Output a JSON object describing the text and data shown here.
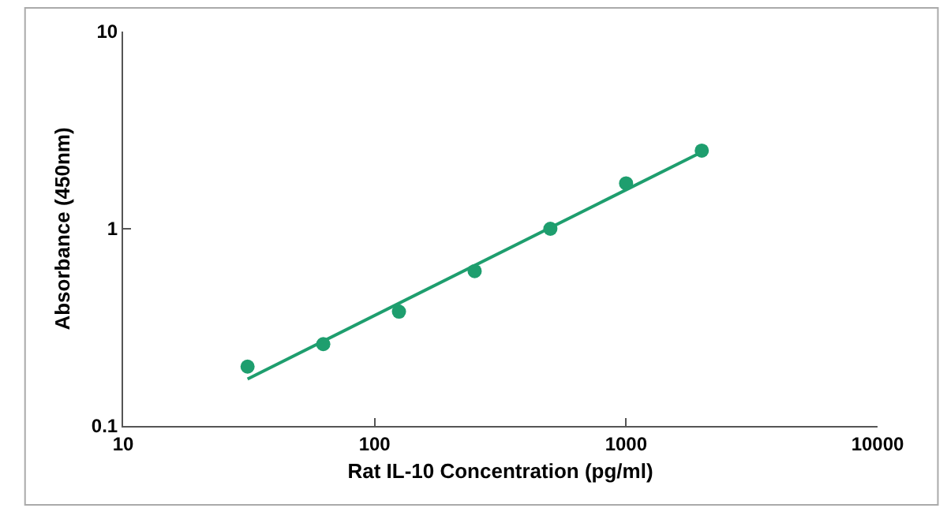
{
  "chart_data": {
    "type": "scatter",
    "xlabel": "Rat IL-10 Concentration (pg/ml)",
    "ylabel": "Absorbance (450nm)",
    "log": "xy",
    "marker": "circle",
    "x": [
      31.25,
      62.5,
      125,
      250,
      500,
      1000,
      2000
    ],
    "series": [
      {
        "color": "#1e9e6e",
        "values": [
          0.2,
          0.26,
          0.38,
          0.61,
          1.0,
          1.7,
          2.49
        ]
      },
      {
        "type": "line",
        "color": "#1e9e6e",
        "x": [
          31.25,
          2000
        ],
        "values": [
          0.173,
          2.45
        ],
        "marker": "none",
        "line_style": "solid"
      }
    ],
    "xlim": [
      10,
      10000
    ],
    "xticks": [
      10,
      100,
      1000,
      10000
    ],
    "ylim": [
      0.1,
      10
    ],
    "yticks": [
      0.1,
      1,
      10
    ]
  }
}
